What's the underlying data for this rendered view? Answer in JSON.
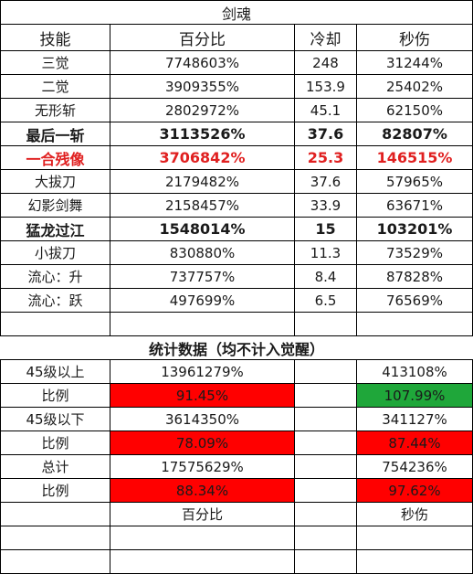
{
  "title": "剑魂",
  "headers": [
    "技能",
    "百分比",
    "冷却",
    "秒伤"
  ],
  "skills": [
    {
      "name": "三觉",
      "pct": "7748603%",
      "cd": "248",
      "dps": "31244%",
      "style": "normal"
    },
    {
      "name": "二觉",
      "pct": "3909355%",
      "cd": "153.9",
      "dps": "25402%",
      "style": "normal"
    },
    {
      "name": "无形斩",
      "pct": "2802972%",
      "cd": "45.1",
      "dps": "62150%",
      "style": "normal"
    },
    {
      "name": "最后一斩",
      "pct": "3113526%",
      "cd": "37.6",
      "dps": "82807%",
      "style": "bold"
    },
    {
      "name": "一合残像",
      "pct": "3706842%",
      "cd": "25.3",
      "dps": "146515%",
      "style": "red"
    },
    {
      "name": "大拔刀",
      "pct": "2179482%",
      "cd": "37.6",
      "dps": "57965%",
      "style": "normal"
    },
    {
      "name": "幻影剑舞",
      "pct": "2158457%",
      "cd": "33.9",
      "dps": "63671%",
      "style": "normal"
    },
    {
      "name": "猛龙过江",
      "pct": "1548014%",
      "cd": "15",
      "dps": "103201%",
      "style": "bold"
    },
    {
      "name": "小拔刀",
      "pct": "830880%",
      "cd": "11.3",
      "dps": "73529%",
      "style": "normal"
    },
    {
      "name": "流心：升",
      "pct": "737757%",
      "cd": "8.4",
      "dps": "87828%",
      "style": "normal"
    },
    {
      "name": "流心：跃",
      "pct": "497699%",
      "cd": "6.5",
      "dps": "76569%",
      "style": "normal"
    }
  ],
  "stats_title": "统计数据（均不计入觉醒）",
  "stats": [
    {
      "label": "45级以上",
      "pct": "13961279%",
      "dps": "413108%",
      "pct_fill": "",
      "dps_fill": ""
    },
    {
      "label": "比例",
      "pct": "91.45%",
      "dps": "107.99%",
      "pct_fill": "red",
      "dps_fill": "green"
    },
    {
      "label": "45级以下",
      "pct": "3614350%",
      "dps": "341127%",
      "pct_fill": "",
      "dps_fill": ""
    },
    {
      "label": "比例",
      "pct": "78.09%",
      "dps": "87.44%",
      "pct_fill": "red",
      "dps_fill": "red"
    },
    {
      "label": "总计",
      "pct": "17575629%",
      "dps": "754236%",
      "pct_fill": "",
      "dps_fill": ""
    },
    {
      "label": "比例",
      "pct": "88.34%",
      "dps": "97.62%",
      "pct_fill": "red",
      "dps_fill": "red"
    }
  ],
  "footer_headers": {
    "pct": "百分比",
    "dps": "秒伤"
  },
  "colors": {
    "red_fill": "#ff0000",
    "green_fill": "#1fa73a",
    "red_text": "#e02020"
  }
}
